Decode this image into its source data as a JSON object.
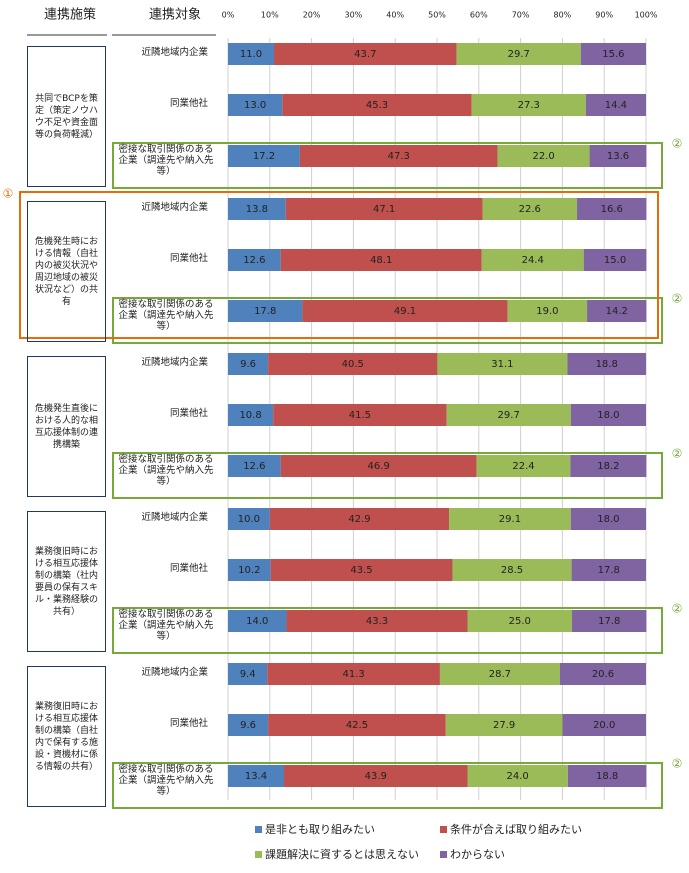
{
  "chart_data": {
    "type": "stacked-bar-horizontal",
    "column_headers": [
      "連携施策",
      "連携対象"
    ],
    "groups": [
      {
        "label": "共同でBCPを策定（策定ノウハウ不足や資金面等の負荷軽減）"
      },
      {
        "label": "危機発生時における情報（自社内の被災状況や周辺地域の被災状況など）の共有"
      },
      {
        "label": "危機発生直後における人的な相互応援体制の連携構築"
      },
      {
        "label": "業務復旧時における相互応援体制の構築（社内要員の保有スキル・業務経験の共有）"
      },
      {
        "label": "業務復旧時における相互応援体制の構築（自社内で保有する施設・資機材に係る情報の共有）"
      }
    ],
    "categories": [
      "近隣地域内企業",
      "同業他社",
      "密接な取引関係のある企業（調達先や納入先等）",
      "近隣地域内企業",
      "同業他社",
      "密接な取引関係のある企業（調達先や納入先等）",
      "近隣地域内企業",
      "同業他社",
      "密接な取引関係のある企業（調達先や納入先等）",
      "近隣地域内企業",
      "同業他社",
      "密接な取引関係のある企業（調達先や納入先等）",
      "近隣地域内企業",
      "同業他社",
      "密接な取引関係のある企業（調達先や納入先等）"
    ],
    "series": [
      {
        "name": "是非とも取り組みたい",
        "color": "#4f81bd",
        "values": [
          11.0,
          13.0,
          17.2,
          13.8,
          12.6,
          17.8,
          9.6,
          10.8,
          12.6,
          10.0,
          10.2,
          14.0,
          9.4,
          9.6,
          13.4
        ],
        "value_labels": [
          "11.0",
          "13.0",
          "17.2",
          "13.8",
          "12.6",
          "17.8",
          "9.6",
          "10.8",
          "12.6",
          "10.0",
          "10.2",
          "14.0",
          "9.4",
          "9.6",
          "13.4"
        ]
      },
      {
        "name": "条件が合えば取り組みたい",
        "color": "#c0504d",
        "values": [
          43.7,
          45.3,
          47.3,
          47.1,
          48.1,
          49.1,
          40.5,
          41.5,
          46.9,
          42.9,
          43.5,
          43.3,
          41.3,
          42.5,
          43.9
        ],
        "value_labels": [
          "43.7",
          "45.3",
          "47.3",
          "47.1",
          "48.1",
          "49.1",
          "40.5",
          "41.5",
          "46.9",
          "42.9",
          "43.5",
          "43.3",
          "41.3",
          "42.5",
          "43.9"
        ]
      },
      {
        "name": "課題解決に資するとは思えない",
        "color": "#9bbb59",
        "values": [
          29.7,
          27.3,
          22.0,
          22.6,
          24.4,
          19.0,
          31.1,
          29.7,
          22.4,
          29.1,
          28.5,
          25.0,
          28.7,
          27.9,
          24.0
        ],
        "value_labels": [
          "29.7",
          "27.3",
          "22.0",
          "22.6",
          "24.4",
          "19.0",
          "31.1",
          "29.7",
          "22.4",
          "29.1",
          "28.5",
          "25.0",
          "28.7",
          "27.9",
          "24.0"
        ]
      },
      {
        "name": "わからない",
        "color": "#8064a2",
        "values": [
          15.6,
          14.4,
          13.6,
          16.6,
          15.0,
          14.2,
          18.8,
          18.0,
          18.2,
          18.0,
          17.8,
          17.8,
          20.6,
          20.0,
          18.8
        ],
        "value_labels": [
          "15.6",
          "14.4",
          "13.6",
          "16.6",
          "15.0",
          "14.2",
          "18.8",
          "18.0",
          "18.2",
          "18.0",
          "17.8",
          "17.8",
          "20.6",
          "20.0",
          "18.8"
        ]
      }
    ],
    "xlim": [
      0,
      100
    ],
    "xticks": [
      {
        "value": 0,
        "label": "0%"
      },
      {
        "value": 10,
        "label": "10%"
      },
      {
        "value": 20,
        "label": "20%"
      },
      {
        "value": 30,
        "label": "30%"
      },
      {
        "value": 40,
        "label": "40%"
      },
      {
        "value": 50,
        "label": "50%"
      },
      {
        "value": 60,
        "label": "60%"
      },
      {
        "value": 70,
        "label": "70%"
      },
      {
        "value": 80,
        "label": "80%"
      },
      {
        "value": 90,
        "label": "90%"
      },
      {
        "value": 100,
        "label": "100%"
      }
    ],
    "grid": true,
    "annotations": [
      "①",
      "②"
    ]
  }
}
